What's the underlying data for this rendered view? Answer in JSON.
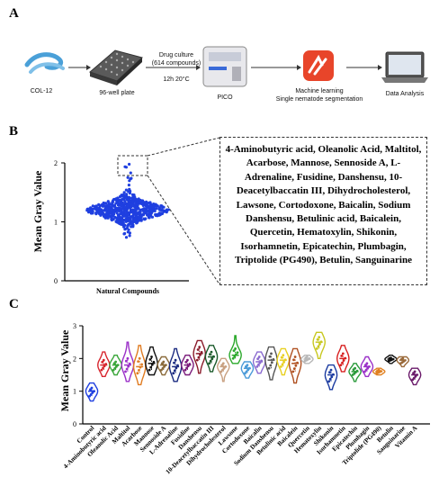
{
  "panels": {
    "a": "A",
    "b": "B",
    "c": "C"
  },
  "workflow": {
    "worm_label": "COL-12",
    "plate_label": "96-well plate",
    "drug_culture": "Drug culture",
    "compounds": "(614 compounds)",
    "time_temp": "12h 20°C",
    "instrument_label": "PICO",
    "ml_line1": "Machine learning",
    "ml_line2": "Single nematode segmentation",
    "analysis_label": "Data Analysis"
  },
  "compound_list": "4-Aminobutyric acid, Oleanolic Acid, Maltitol, Acarbose, Mannose, Sennoside A, L-Adrenaline, Fusidine, Danshensu, 10-Deacetylbaccatin III, Dihydrocholesterol, Lawsone, Cortodoxone, Baicalin, Sodium Danshensu, Betulinic acid, Baicalein, Quercetin, Hematoxylin, Shikonin, Isorhamnetin, Epicatechin, Plumbagin, Triptolide (PG490), Betulin, Sanguinarine",
  "colors": {
    "scatter_blue": "#1f3fe0",
    "ink": "#000000"
  },
  "chart_data": [
    {
      "type": "scatter",
      "subtype": "beeswarm",
      "ylabel": "Mean Gray Value",
      "categories": [
        "Natural Compounds"
      ],
      "ylim": [
        0,
        2
      ],
      "yticks": [
        0,
        1,
        2
      ],
      "n_points": 614,
      "distribution": {
        "center": 1.2,
        "min": 0.7,
        "max": 2.0,
        "bulk_low": 1.0,
        "bulk_high": 1.45
      },
      "highlight_range": [
        1.55,
        2.0
      ],
      "highlight_callout": "dashed box"
    },
    {
      "type": "violin",
      "ylabel": "Mean Gray Value",
      "ylim": [
        0,
        3
      ],
      "yticks": [
        0,
        1,
        2,
        3
      ],
      "categories": [
        "Control",
        "4-Aminobutyric acid",
        "Oleanolic Acid",
        "Maltitol",
        "Acarbose",
        "Mannose",
        "Sennoside A",
        "L-Adrenaline",
        "Fusidine",
        "Danshensu",
        "10-Deacetylbaccatin III",
        "Dihydrocholesterol",
        "Lawsone",
        "Cortodoxone",
        "Baicalin",
        "Sodium Danshensu",
        "Betulinic acid",
        "Baicalein",
        "Quercetin",
        "Hematoxylin",
        "Shikonin",
        "Isorhamnetin",
        "Epicatechin",
        "Plumbagin",
        "Triptolide (PG490)",
        "Betulin",
        "Sanguinarine",
        "Vitamin A"
      ],
      "series": [
        {
          "min": 0.7,
          "q1": 0.85,
          "median": 1.0,
          "q3": 1.1,
          "max": 1.25,
          "color": "#1f3fe0"
        },
        {
          "min": 1.45,
          "q1": 1.65,
          "median": 1.8,
          "q3": 1.95,
          "max": 2.2,
          "color": "#d8262e"
        },
        {
          "min": 1.5,
          "q1": 1.65,
          "median": 1.8,
          "q3": 1.9,
          "max": 2.1,
          "color": "#3aa63a"
        },
        {
          "min": 1.3,
          "q1": 1.6,
          "median": 1.8,
          "q3": 2.0,
          "max": 2.5,
          "color": "#9b30c8"
        },
        {
          "min": 1.2,
          "q1": 1.55,
          "median": 1.75,
          "q3": 2.0,
          "max": 2.4,
          "color": "#e07b20"
        },
        {
          "min": 1.5,
          "q1": 1.65,
          "median": 1.85,
          "q3": 2.05,
          "max": 2.35,
          "color": "#111111"
        },
        {
          "min": 1.5,
          "q1": 1.65,
          "median": 1.8,
          "q3": 1.9,
          "max": 2.05,
          "color": "#8a6a3a"
        },
        {
          "min": 1.3,
          "q1": 1.55,
          "median": 1.75,
          "q3": 1.95,
          "max": 2.3,
          "color": "#1a2a80"
        },
        {
          "min": 1.5,
          "q1": 1.65,
          "median": 1.8,
          "q3": 1.95,
          "max": 2.1,
          "color": "#7a1a7a"
        },
        {
          "min": 1.55,
          "q1": 1.95,
          "median": 2.15,
          "q3": 2.35,
          "max": 2.55,
          "color": "#8a1a2a"
        },
        {
          "min": 1.6,
          "q1": 1.85,
          "median": 2.05,
          "q3": 2.2,
          "max": 2.4,
          "color": "#1a5a2a"
        },
        {
          "min": 1.3,
          "q1": 1.6,
          "median": 1.75,
          "q3": 1.85,
          "max": 2.0,
          "color": "#c8a080"
        },
        {
          "min": 1.85,
          "q1": 2.0,
          "median": 2.1,
          "q3": 2.3,
          "max": 2.7,
          "color": "#2aa82a"
        },
        {
          "min": 1.4,
          "q1": 1.55,
          "median": 1.7,
          "q3": 1.8,
          "max": 1.9,
          "color": "#4a9ad8"
        },
        {
          "min": 1.55,
          "q1": 1.75,
          "median": 1.9,
          "q3": 2.05,
          "max": 2.2,
          "color": "#8a6ad0"
        },
        {
          "min": 1.35,
          "q1": 1.7,
          "median": 1.95,
          "q3": 2.15,
          "max": 2.35,
          "color": "#555555"
        },
        {
          "min": 1.5,
          "q1": 1.75,
          "median": 1.95,
          "q3": 2.1,
          "max": 2.3,
          "color": "#e8d020"
        },
        {
          "min": 1.25,
          "q1": 1.6,
          "median": 1.85,
          "q3": 2.05,
          "max": 2.3,
          "color": "#b05020"
        },
        {
          "min": 1.85,
          "q1": 1.92,
          "median": 1.98,
          "q3": 2.05,
          "max": 2.1,
          "color": "#b8b8b8"
        },
        {
          "min": 2.0,
          "q1": 2.3,
          "median": 2.5,
          "q3": 2.65,
          "max": 2.8,
          "color": "#c8c820"
        },
        {
          "min": 1.05,
          "q1": 1.3,
          "median": 1.5,
          "q3": 1.65,
          "max": 1.8,
          "color": "#1a3aa0"
        },
        {
          "min": 1.6,
          "q1": 1.8,
          "median": 2.0,
          "q3": 2.15,
          "max": 2.4,
          "color": "#d82020"
        },
        {
          "min": 1.3,
          "q1": 1.5,
          "median": 1.6,
          "q3": 1.7,
          "max": 1.85,
          "color": "#2a9a3a"
        },
        {
          "min": 1.45,
          "q1": 1.6,
          "median": 1.75,
          "q3": 1.85,
          "max": 2.05,
          "color": "#9a30c8"
        },
        {
          "min": 1.5,
          "q1": 1.55,
          "median": 1.6,
          "q3": 1.65,
          "max": 1.7,
          "color": "#e08020"
        },
        {
          "min": 1.85,
          "q1": 1.92,
          "median": 1.98,
          "q3": 2.02,
          "max": 2.1,
          "color": "#111111"
        },
        {
          "min": 1.75,
          "q1": 1.85,
          "median": 1.95,
          "q3": 2.0,
          "max": 2.05,
          "color": "#9a6a3a"
        },
        {
          "min": 1.2,
          "q1": 1.35,
          "median": 1.5,
          "q3": 1.6,
          "max": 1.7,
          "color": "#6a1a6a"
        }
      ]
    }
  ]
}
